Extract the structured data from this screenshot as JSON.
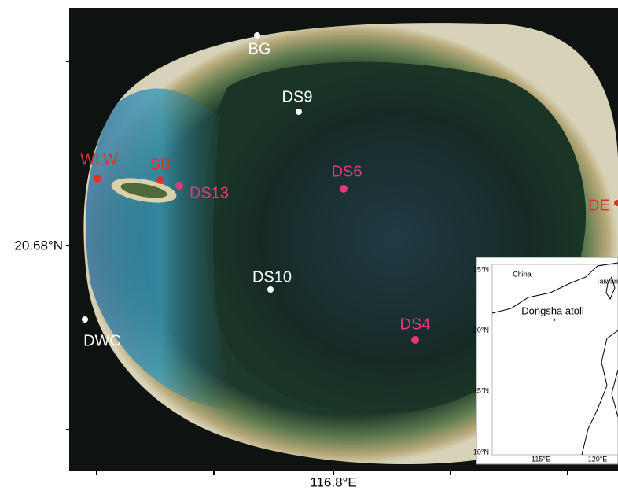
{
  "axes": {
    "y_label": "20.68°N",
    "x_label": "116.8°E"
  },
  "stations": [
    {
      "label": "BG"
    },
    {
      "label": "DS9"
    },
    {
      "label": "WLW"
    },
    {
      "label": "SB"
    },
    {
      "label": "DS13"
    },
    {
      "label": "DS6"
    },
    {
      "label": "DE"
    },
    {
      "label": "DS10"
    },
    {
      "label": "DWC"
    },
    {
      "label": "DS4"
    }
  ],
  "inset": {
    "labels": [
      "China",
      "Taiwan",
      "Dongsha atoll"
    ],
    "lat_ticks": [
      "25°N",
      "20°N",
      "15°N",
      "10°N"
    ],
    "lon_ticks": [
      "115°E",
      "120°E"
    ]
  }
}
